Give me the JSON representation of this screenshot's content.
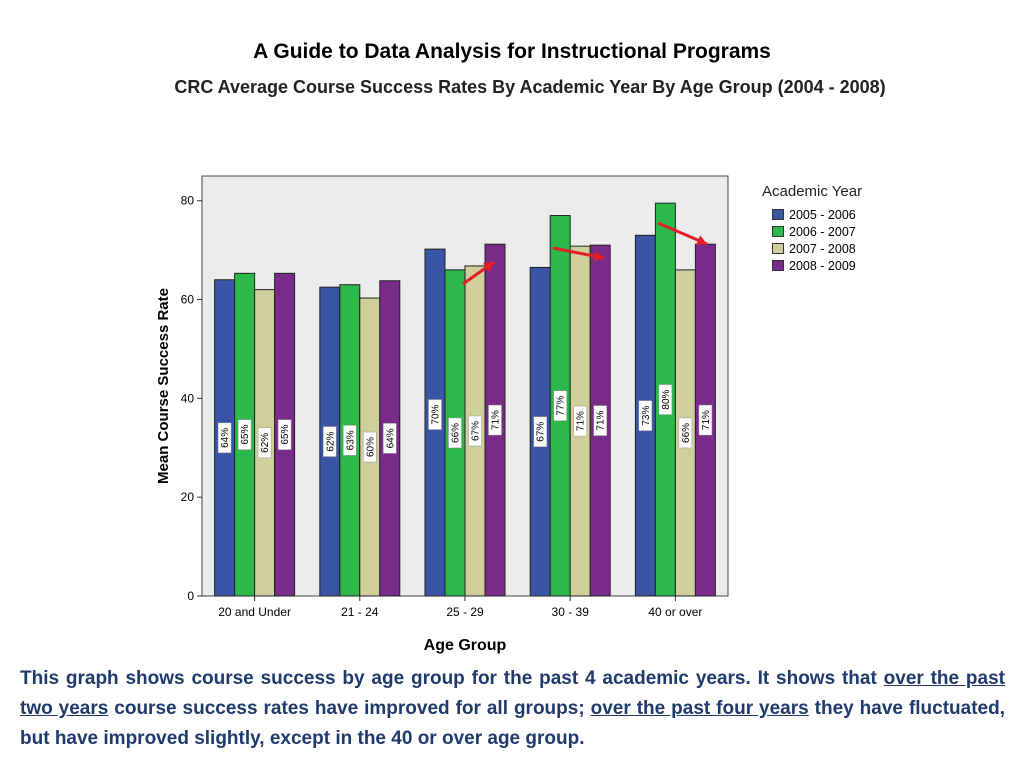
{
  "slide": {
    "title": "A Guide to Data Analysis for Instructional Programs"
  },
  "chart_data": {
    "type": "bar",
    "title": "CRC Average Course Success Rates By Academic Year By Age Group (2004 - 2008)",
    "xlabel": "Age Group",
    "ylabel": "Mean Course Success Rate",
    "ylim": [
      0,
      85
    ],
    "yticks": [
      0,
      20,
      40,
      60,
      80
    ],
    "grid": false,
    "legend_title": "Academic Year",
    "legend_position": "right",
    "categories": [
      "20 and Under",
      "21 - 24",
      "25 - 29",
      "30 - 39",
      "40 or over"
    ],
    "series": [
      {
        "name": "2005 - 2006",
        "color": "#3a55a6",
        "values": [
          64,
          62.5,
          70.2,
          66.5,
          73
        ],
        "labels": [
          "64%",
          "62%",
          "70%",
          "67%",
          "73%"
        ]
      },
      {
        "name": "2006 - 2007",
        "color": "#2db84a",
        "values": [
          65.3,
          63,
          66,
          77,
          79.5
        ],
        "labels": [
          "65%",
          "63%",
          "66%",
          "77%",
          "80%"
        ]
      },
      {
        "name": "2007 - 2008",
        "color": "#cfcf9c",
        "values": [
          62,
          60.3,
          66.8,
          70.8,
          66
        ],
        "labels": [
          "62%",
          "60%",
          "67%",
          "71%",
          "66%"
        ]
      },
      {
        "name": "2008 - 2009",
        "color": "#7a2b8a",
        "values": [
          65.3,
          63.8,
          71.2,
          71,
          71.2
        ],
        "labels": [
          "65%",
          "64%",
          "71%",
          "71%",
          "71%"
        ]
      }
    ],
    "plot_background": "#ececec",
    "annotation_arrow_color": "#e31e24"
  },
  "caption": {
    "part1": "This graph shows course success by age group for the past 4 academic years.  It shows that ",
    "part2": "over the past two years",
    "part3": " course success rates have improved for all groups; ",
    "part4": "over the past four years",
    "part5": " they have fluctuated, but have improved slightly, except in the 40 or over age group."
  }
}
